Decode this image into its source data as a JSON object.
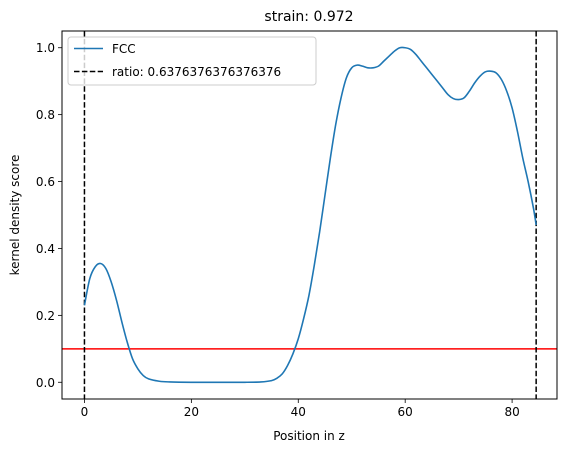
{
  "chart_data": {
    "type": "line",
    "title": "strain: 0.972",
    "xlabel": "Position in z",
    "ylabel": "kernel density score",
    "xlim": [
      -4.2,
      88.4
    ],
    "ylim": [
      -0.05,
      1.05
    ],
    "xticks": [
      0,
      20,
      40,
      60,
      80
    ],
    "yticks": [
      0.0,
      0.2,
      0.4,
      0.6,
      0.8,
      1.0
    ],
    "xtick_labels": [
      "0",
      "20",
      "40",
      "60",
      "80"
    ],
    "ytick_labels": [
      "0.0",
      "0.2",
      "0.4",
      "0.6",
      "0.8",
      "1.0"
    ],
    "grid": false,
    "legend_position": "upper-left",
    "series": [
      {
        "name": "FCC",
        "color": "#1f77b4",
        "style": "solid",
        "x": [
          0,
          1,
          2,
          3,
          4,
          5,
          6,
          7,
          8,
          9,
          10,
          11,
          12,
          14,
          16,
          20,
          25,
          30,
          33,
          35,
          36,
          37,
          38,
          39,
          40,
          41,
          42,
          43,
          44,
          45,
          46,
          47,
          48,
          49,
          50,
          51,
          52,
          53,
          54,
          55,
          56,
          57,
          58,
          59,
          60,
          61,
          62,
          63,
          64,
          65,
          66,
          67,
          68,
          69,
          70,
          71,
          72,
          73,
          74,
          75,
          76,
          77,
          78,
          79,
          80,
          81,
          82,
          83,
          84,
          84.5
        ],
        "y": [
          0.23,
          0.31,
          0.345,
          0.355,
          0.34,
          0.3,
          0.245,
          0.18,
          0.12,
          0.07,
          0.04,
          0.02,
          0.01,
          0.003,
          0.001,
          0.0,
          0.0,
          0.0,
          0.001,
          0.005,
          0.012,
          0.025,
          0.05,
          0.085,
          0.13,
          0.19,
          0.26,
          0.35,
          0.45,
          0.56,
          0.67,
          0.77,
          0.85,
          0.91,
          0.94,
          0.948,
          0.945,
          0.94,
          0.94,
          0.945,
          0.96,
          0.975,
          0.99,
          1.0,
          1.0,
          0.995,
          0.98,
          0.96,
          0.94,
          0.92,
          0.9,
          0.88,
          0.86,
          0.848,
          0.845,
          0.85,
          0.87,
          0.895,
          0.915,
          0.928,
          0.93,
          0.925,
          0.905,
          0.87,
          0.82,
          0.75,
          0.67,
          0.6,
          0.52,
          0.47
        ]
      }
    ],
    "vlines": [
      {
        "name": "ratio: 0.6376376376376376",
        "x": 0,
        "color": "#000000",
        "style": "dashed",
        "in_legend": true
      },
      {
        "x": 84.5,
        "color": "#000000",
        "style": "dashed",
        "in_legend": false
      }
    ],
    "hlines": [
      {
        "y": 0.1,
        "color": "#ff0000",
        "style": "solid"
      }
    ]
  }
}
